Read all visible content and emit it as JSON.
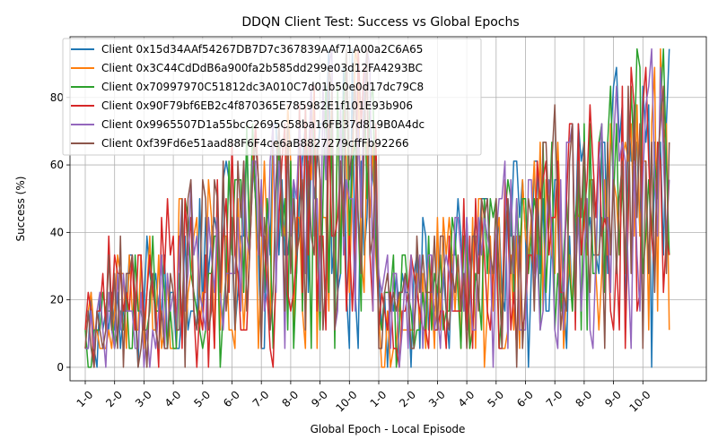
{
  "chart_data": {
    "type": "line",
    "title": "DDQN Client Test: Success vs Global Epochs",
    "xlabel": "Global Epoch - Local Episode",
    "ylabel": "Success (%)",
    "ylim": [
      -4,
      98
    ],
    "yticks": [
      0,
      20,
      40,
      60,
      80
    ],
    "x_tick_labels": [
      "1-0",
      "2-0",
      "3-0",
      "4-0",
      "5-0",
      "6-0",
      "7-0",
      "8-0",
      "9-0",
      "10-0",
      "1-0",
      "2-0",
      "3-0",
      "4-0",
      "5-0",
      "6-0",
      "7-0",
      "8-0",
      "9-0",
      "10-0"
    ],
    "grid": true,
    "legend_placement": "top-left",
    "series": [
      {
        "name": "Client 0x15d34AAf54267DB7D7c367839AAf71A00a2C6A65",
        "color": "#1f77b4",
        "seed": 11
      },
      {
        "name": "Client 0x3C44CdDdB6a900fa2b585dd299e03d12FA4293BC",
        "color": "#ff7f0e",
        "seed": 23
      },
      {
        "name": "Client 0x70997970C51812dc3A010C7d01b50e0d17dc79C8",
        "color": "#2ca02c",
        "seed": 37
      },
      {
        "name": "Client 0x90F79bf6EB2c4f870365E785982E1f101E93b906",
        "color": "#d62728",
        "seed": 41
      },
      {
        "name": "Client 0x9965507D1a55bcC2695C58ba16FB37d819B0A4dc",
        "color": "#9467bd",
        "seed": 53
      },
      {
        "name": "Client 0xf39Fd6e51aad88F6F4ce6aB8827279cffFb92266",
        "color": "#8c564b",
        "seed": 67
      }
    ]
  }
}
